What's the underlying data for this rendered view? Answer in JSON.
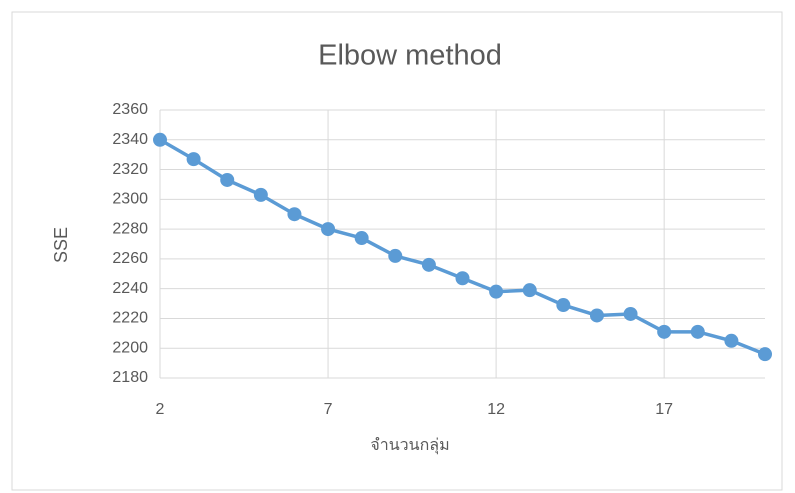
{
  "chart_data": {
    "type": "line",
    "title": "Elbow method",
    "x_label": "จำนวนกลุ่ม",
    "y_label": "SSE",
    "x": [
      2,
      3,
      4,
      5,
      6,
      7,
      8,
      9,
      10,
      11,
      12,
      13,
      14,
      15,
      16,
      17,
      18,
      19,
      20
    ],
    "series": [
      {
        "name": "SSE",
        "color": "#5b9bd5",
        "values": [
          2340,
          2327,
          2313,
          2303,
          2290,
          2280,
          2274,
          2262,
          2256,
          2247,
          2238,
          2239,
          2229,
          2222,
          2223,
          2211,
          2211,
          2205,
          2196
        ]
      }
    ],
    "xlim": [
      2,
      20
    ],
    "xticks": [
      2,
      7,
      12,
      17
    ],
    "ylim": [
      2180,
      2360
    ],
    "yticks": [
      2180,
      2200,
      2220,
      2240,
      2260,
      2280,
      2300,
      2320,
      2340,
      2360
    ],
    "grid": true
  }
}
